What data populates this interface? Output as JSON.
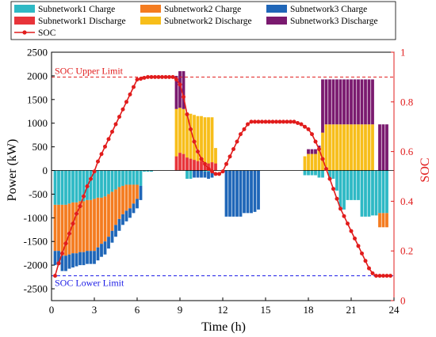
{
  "chart_data": {
    "type": "bar",
    "legend": {
      "placement": "top",
      "entries": [
        {
          "key": "s1c",
          "label": "Subnetwork1 Charge",
          "color": "#2EB9C5"
        },
        {
          "key": "s2c",
          "label": "Subnetwork2 Charge",
          "color": "#F47C20"
        },
        {
          "key": "s3c",
          "label": "Subnetwork3 Charge",
          "color": "#1F66B8"
        },
        {
          "key": "s1d",
          "label": "Subnetwork1 Discharge",
          "color": "#E8343A"
        },
        {
          "key": "s2d",
          "label": "Subnetwork2 Discharge",
          "color": "#F7BE1A"
        },
        {
          "key": "s3d",
          "label": "Subnetwork3 Discharge",
          "color": "#7A1A6F"
        },
        {
          "key": "soc",
          "label": "SOC",
          "color": "#E11C1C"
        }
      ]
    },
    "xlabel": "Time (h)",
    "ylabel_left": "Power (kW)",
    "ylabel_right": "SOC",
    "xlim": [
      0,
      24
    ],
    "ylim_left": [
      -2750,
      2500
    ],
    "ylim_right": [
      0,
      1
    ],
    "x_ticks": [
      "0",
      "3",
      "6",
      "9",
      "12",
      "15",
      "18",
      "21",
      "24"
    ],
    "y_ticks_left": [
      "2500",
      "2000",
      "1500",
      "1000",
      "500",
      "0",
      "-500",
      "-1000",
      "-1500",
      "-2000",
      "-2500"
    ],
    "y_ticks_right": [
      "1",
      "0.8",
      "0.6",
      "0.4",
      "0.2",
      "0"
    ],
    "soc_upper_limit": {
      "value": 0.9,
      "label": "SOC Upper Limit",
      "color": "#E11C1C"
    },
    "soc_lower_limit": {
      "value": 0.1,
      "label": "SOC Lower Limit",
      "color": "#1A1AE6"
    },
    "bar_width_h": 0.25,
    "bars": [
      {
        "t": 0.25,
        "s1c": -725,
        "s2c": -975,
        "s3c": -300
      },
      {
        "t": 0.5,
        "s1c": -725,
        "s2c": -975,
        "s3c": -300
      },
      {
        "t": 0.75,
        "s1c": -725,
        "s2c": -1075,
        "s3c": -325
      },
      {
        "t": 1.0,
        "s1c": -725,
        "s2c": -1075,
        "s3c": -325
      },
      {
        "t": 1.25,
        "s1c": -700,
        "s2c": -1075,
        "s3c": -300
      },
      {
        "t": 1.5,
        "s1c": -675,
        "s2c": -1075,
        "s3c": -300
      },
      {
        "t": 1.75,
        "s1c": -675,
        "s2c": -1075,
        "s3c": -275
      },
      {
        "t": 2.0,
        "s1c": -650,
        "s2c": -1075,
        "s3c": -275
      },
      {
        "t": 2.25,
        "s1c": -650,
        "s2c": -1075,
        "s3c": -275
      },
      {
        "t": 2.5,
        "s1c": -625,
        "s2c": -1075,
        "s3c": -275
      },
      {
        "t": 2.75,
        "s1c": -625,
        "s2c": -1075,
        "s3c": -275
      },
      {
        "t": 3.0,
        "s1c": -600,
        "s2c": -1100,
        "s3c": -275
      },
      {
        "t": 3.25,
        "s1c": -575,
        "s2c": -1050,
        "s3c": -275
      },
      {
        "t": 3.5,
        "s1c": -575,
        "s2c": -975,
        "s3c": -275
      },
      {
        "t": 3.75,
        "s1c": -550,
        "s2c": -950,
        "s3c": -275
      },
      {
        "t": 4.0,
        "s1c": -500,
        "s2c": -900,
        "s3c": -250
      },
      {
        "t": 4.25,
        "s1c": -450,
        "s2c": -825,
        "s3c": -250
      },
      {
        "t": 4.5,
        "s1c": -400,
        "s2c": -750,
        "s3c": -250
      },
      {
        "t": 4.75,
        "s1c": -350,
        "s2c": -675,
        "s3c": -250
      },
      {
        "t": 5.0,
        "s1c": -325,
        "s2c": -600,
        "s3c": -225
      },
      {
        "t": 5.25,
        "s1c": -300,
        "s2c": -550,
        "s3c": -225
      },
      {
        "t": 5.5,
        "s1c": -300,
        "s2c": -500,
        "s3c": -200
      },
      {
        "t": 5.75,
        "s1c": -300,
        "s2c": -400,
        "s3c": -200
      },
      {
        "t": 6.0,
        "s1c": -300,
        "s2c": -300,
        "s3c": -200
      },
      {
        "t": 6.25,
        "s1c": -325,
        "s2c": 0,
        "s3c": -300
      },
      {
        "t": 6.5,
        "s1c": -25
      },
      {
        "t": 6.75,
        "s1c": -25
      },
      {
        "t": 7.0,
        "s1c": -25
      },
      {
        "t": 8.75,
        "s1d": 300,
        "s2d": 1000,
        "s3d": 700
      },
      {
        "t": 9.0,
        "s1d": 375,
        "s2d": 950,
        "s3d": 775
      },
      {
        "t": 9.25,
        "s1d": 350,
        "s2d": 950,
        "s3d": 800
      },
      {
        "t": 9.5,
        "s1d": 275,
        "s2d": 950,
        "s3d": 0,
        "s1c": -175
      },
      {
        "t": 9.75,
        "s1d": 250,
        "s2d": 950,
        "s1c": -175
      },
      {
        "t": 10.0,
        "s1d": 225,
        "s2d": 950,
        "s3c": -150
      },
      {
        "t": 10.25,
        "s1d": 200,
        "s2d": 950,
        "s3c": -150
      },
      {
        "t": 10.5,
        "s1d": 200,
        "s2d": 950,
        "s3c": -150
      },
      {
        "t": 10.75,
        "s1d": 175,
        "s2d": 950,
        "s1c": -25,
        "s3c": -125
      },
      {
        "t": 11.0,
        "s1d": 150,
        "s2d": 975,
        "s1c": -25,
        "s3c": -150
      },
      {
        "t": 11.25,
        "s1d": 175,
        "s2d": 950,
        "s1c": -25,
        "s3c": -125
      },
      {
        "t": 11.5,
        "s1d": 150,
        "s2d": 325
      },
      {
        "t": 12.25,
        "s3c": -975
      },
      {
        "t": 12.5,
        "s3c": -975
      },
      {
        "t": 12.75,
        "s3c": -975
      },
      {
        "t": 13.0,
        "s3c": -975
      },
      {
        "t": 13.25,
        "s3c": -975
      },
      {
        "t": 13.5,
        "s3c": -900
      },
      {
        "t": 13.75,
        "s3c": -900
      },
      {
        "t": 14.0,
        "s3c": -900
      },
      {
        "t": 14.25,
        "s3c": -875
      },
      {
        "t": 14.5,
        "s3c": -825
      },
      {
        "t": 17.75,
        "s1c": -100,
        "s2d": 300
      },
      {
        "t": 18.0,
        "s1c": -100,
        "s2d": 350,
        "s3d": 100
      },
      {
        "t": 18.25,
        "s1c": -100,
        "s2d": 350,
        "s3d": 100
      },
      {
        "t": 18.5,
        "s1c": -100,
        "s2d": 350,
        "s3d": 100
      },
      {
        "t": 18.75,
        "s1c": -150,
        "s2d": 425,
        "s3d": 100
      },
      {
        "t": 19.0,
        "s1c": -150,
        "s2d": 800,
        "s3d": 1125
      },
      {
        "t": 19.25,
        "s1d": 0,
        "s2d": 975,
        "s3d": 950
      },
      {
        "t": 19.5,
        "s1c": -175,
        "s2d": 975,
        "s3d": 950
      },
      {
        "t": 19.75,
        "s1c": -175,
        "s2d": 975,
        "s3d": 950
      },
      {
        "t": 20.0,
        "s1c": -425,
        "s2d": 975,
        "s3d": 950
      },
      {
        "t": 20.25,
        "s1c": -825,
        "s2d": 975,
        "s3d": 950
      },
      {
        "t": 20.5,
        "s1c": -825,
        "s2d": 975,
        "s3d": 950
      },
      {
        "t": 20.75,
        "s1c": -625,
        "s2d": 975,
        "s3d": 950
      },
      {
        "t": 21.0,
        "s1c": -625,
        "s2d": 975,
        "s3d": 950
      },
      {
        "t": 21.25,
        "s1c": -625,
        "s2d": 975,
        "s3d": 950
      },
      {
        "t": 21.5,
        "s1c": -625,
        "s2d": 975,
        "s3d": 950
      },
      {
        "t": 21.75,
        "s1c": -975,
        "s2d": 975,
        "s3d": 950
      },
      {
        "t": 22.0,
        "s1c": -975,
        "s2d": 975,
        "s3d": 950
      },
      {
        "t": 22.25,
        "s1c": -975,
        "s2d": 975,
        "s3d": 950
      },
      {
        "t": 22.5,
        "s1c": -950,
        "s2d": 975,
        "s3d": 950
      },
      {
        "t": 22.75,
        "s1c": -950,
        "s2c": 0,
        "s3d": 0
      },
      {
        "t": 23.0,
        "s1c": -900,
        "s2c": -300,
        "s3d": 975
      },
      {
        "t": 23.25,
        "s1c": -900,
        "s2c": -300,
        "s3d": 975
      },
      {
        "t": 23.5,
        "s1c": -900,
        "s2c": -300,
        "s3d": 975
      }
    ],
    "soc_series": {
      "name": "SOC",
      "x": [
        0.25,
        0.5,
        0.75,
        1.0,
        1.25,
        1.5,
        1.75,
        2.0,
        2.25,
        2.5,
        2.75,
        3.0,
        3.25,
        3.5,
        3.75,
        4.0,
        4.25,
        4.5,
        4.75,
        5.0,
        5.25,
        5.5,
        5.75,
        6.0,
        6.25,
        6.5,
        6.75,
        7.0,
        7.25,
        7.5,
        7.75,
        8.0,
        8.25,
        8.5,
        8.75,
        9.0,
        9.25,
        9.5,
        9.75,
        10.0,
        10.25,
        10.5,
        10.75,
        11.0,
        11.25,
        11.5,
        11.75,
        12.0,
        12.25,
        12.5,
        12.75,
        13.0,
        13.25,
        13.5,
        13.75,
        14.0,
        14.25,
        14.5,
        14.75,
        15.0,
        15.25,
        15.5,
        15.75,
        16.0,
        16.25,
        16.5,
        16.75,
        17.0,
        17.25,
        17.5,
        17.75,
        18.0,
        18.25,
        18.5,
        18.75,
        19.0,
        19.25,
        19.5,
        19.75,
        20.0,
        20.25,
        20.5,
        20.75,
        21.0,
        21.25,
        21.5,
        21.75,
        22.0,
        22.25,
        22.5,
        22.75,
        23.0,
        23.25,
        23.5,
        23.75
      ],
      "y": [
        0.1,
        0.15,
        0.19,
        0.23,
        0.27,
        0.31,
        0.35,
        0.38,
        0.42,
        0.46,
        0.49,
        0.52,
        0.56,
        0.59,
        0.62,
        0.65,
        0.68,
        0.71,
        0.74,
        0.77,
        0.8,
        0.83,
        0.86,
        0.89,
        0.893,
        0.897,
        0.9,
        0.9,
        0.9,
        0.9,
        0.9,
        0.9,
        0.9,
        0.9,
        0.89,
        0.87,
        0.82,
        0.75,
        0.69,
        0.64,
        0.6,
        0.57,
        0.55,
        0.53,
        0.52,
        0.51,
        0.51,
        0.52,
        0.55,
        0.58,
        0.61,
        0.64,
        0.67,
        0.69,
        0.71,
        0.72,
        0.72,
        0.72,
        0.72,
        0.72,
        0.72,
        0.72,
        0.72,
        0.72,
        0.72,
        0.72,
        0.72,
        0.72,
        0.715,
        0.71,
        0.7,
        0.69,
        0.67,
        0.64,
        0.61,
        0.57,
        0.53,
        0.49,
        0.45,
        0.41,
        0.37,
        0.34,
        0.31,
        0.28,
        0.25,
        0.22,
        0.19,
        0.16,
        0.13,
        0.11,
        0.1,
        0.1,
        0.1,
        0.1,
        0.1
      ]
    }
  }
}
